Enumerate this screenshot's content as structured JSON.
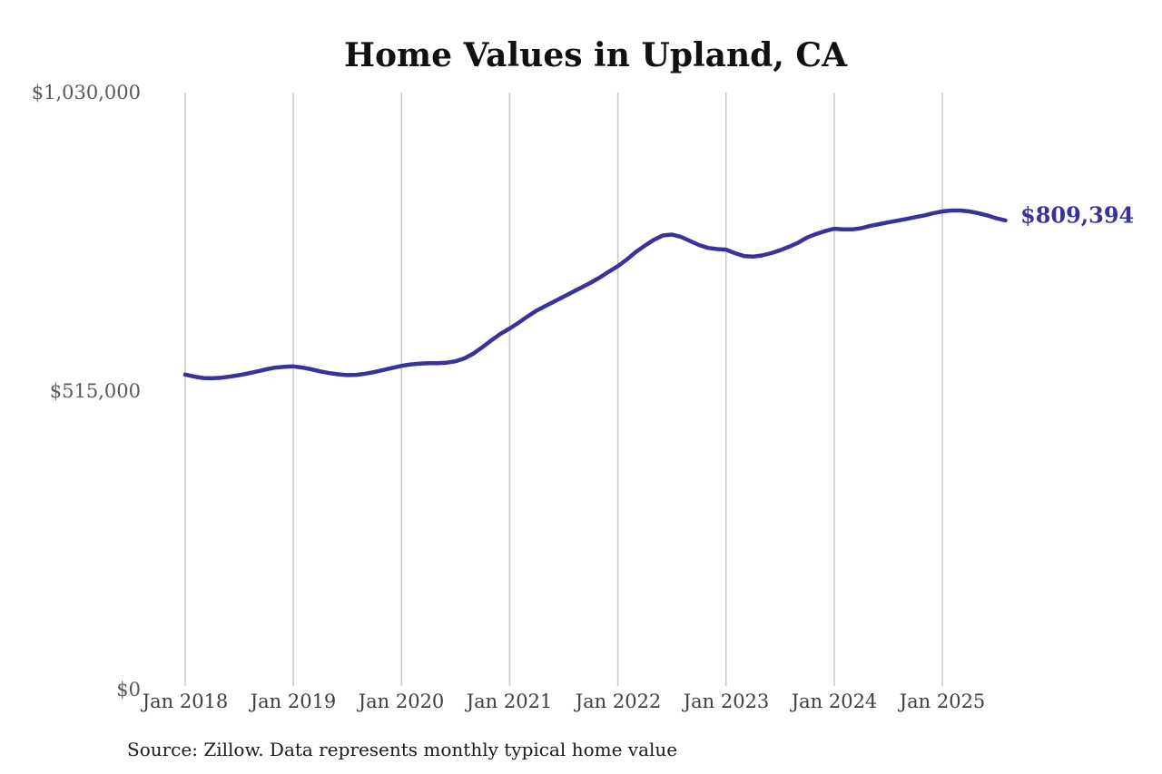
{
  "title": "Home Values in Upland, CA",
  "source_note": "Source: Zillow. Data represents monthly typical home value",
  "end_label": "$809,394",
  "colors": {
    "line": "#39329b",
    "end_label": "#39329b",
    "gridline": "#c9c9c9",
    "title_text": "#111111",
    "x_tick_text": "#3f3f3f",
    "y_tick_text": "#595959",
    "source_text": "#1a1a1a",
    "background": "#ffffff"
  },
  "chart_data": {
    "type": "line",
    "title": "Home Values in Upland, CA",
    "xlabel": "",
    "ylabel": "",
    "ylim": [
      0,
      1030000
    ],
    "y_tick_labels": [
      "$1,030,000",
      "$515,000",
      "$0"
    ],
    "y_tick_values": [
      1030000,
      515000,
      0
    ],
    "x_tick_labels": [
      "Jan 2018",
      "Jan 2019",
      "Jan 2020",
      "Jan 2021",
      "Jan 2022",
      "Jan 2023",
      "Jan 2024",
      "Jan 2025"
    ],
    "grid": "vertical-only",
    "legend": "none",
    "annotation": {
      "text": "$809,394",
      "position": "line-end"
    },
    "x": [
      "2018-01",
      "2018-02",
      "2018-03",
      "2018-04",
      "2018-05",
      "2018-06",
      "2018-07",
      "2018-08",
      "2018-09",
      "2018-10",
      "2018-11",
      "2018-12",
      "2019-01",
      "2019-02",
      "2019-03",
      "2019-04",
      "2019-05",
      "2019-06",
      "2019-07",
      "2019-08",
      "2019-09",
      "2019-10",
      "2019-11",
      "2019-12",
      "2020-01",
      "2020-02",
      "2020-03",
      "2020-04",
      "2020-05",
      "2020-06",
      "2020-07",
      "2020-08",
      "2020-09",
      "2020-10",
      "2020-11",
      "2020-12",
      "2021-01",
      "2021-02",
      "2021-03",
      "2021-04",
      "2021-05",
      "2021-06",
      "2021-07",
      "2021-08",
      "2021-09",
      "2021-10",
      "2021-11",
      "2021-12",
      "2022-01",
      "2022-02",
      "2022-03",
      "2022-04",
      "2022-05",
      "2022-06",
      "2022-07",
      "2022-08",
      "2022-09",
      "2022-10",
      "2022-11",
      "2022-12",
      "2023-01",
      "2023-02",
      "2023-03",
      "2023-04",
      "2023-05",
      "2023-06",
      "2023-07",
      "2023-08",
      "2023-09",
      "2023-10",
      "2023-11",
      "2023-12",
      "2024-01",
      "2024-02",
      "2024-03",
      "2024-04",
      "2024-05",
      "2024-06",
      "2024-07",
      "2024-08",
      "2024-09",
      "2024-10",
      "2024-11",
      "2024-12",
      "2025-01",
      "2025-02",
      "2025-03",
      "2025-04",
      "2025-05",
      "2025-06",
      "2025-07",
      "2025-08"
    ],
    "series": [
      {
        "name": "Monthly typical home value",
        "values": [
          543500,
          540000,
          537500,
          537000,
          538000,
          540000,
          542500,
          545500,
          549000,
          552500,
          555500,
          557000,
          557500,
          555500,
          552500,
          549000,
          546000,
          544000,
          542500,
          543000,
          545000,
          548000,
          551500,
          555000,
          558500,
          561000,
          562500,
          563000,
          563000,
          564000,
          566500,
          571500,
          580000,
          591000,
          603000,
          614000,
          623000,
          633000,
          644000,
          654000,
          662000,
          670000,
          678000,
          686000,
          694000,
          702000,
          711000,
          721000,
          730500,
          742000,
          755000,
          766000,
          776000,
          783500,
          785000,
          781000,
          774000,
          767000,
          762000,
          760000,
          759000,
          753000,
          748000,
          747000,
          749000,
          753000,
          758000,
          764000,
          771000,
          780000,
          786000,
          791000,
          795000,
          794000,
          794000,
          796000,
          800000,
          803000,
          806000,
          809000,
          812000,
          815000,
          818000,
          822000,
          825000,
          826500,
          826500,
          825000,
          822000,
          818000,
          813000,
          809394
        ]
      }
    ],
    "final_value": 809394
  }
}
